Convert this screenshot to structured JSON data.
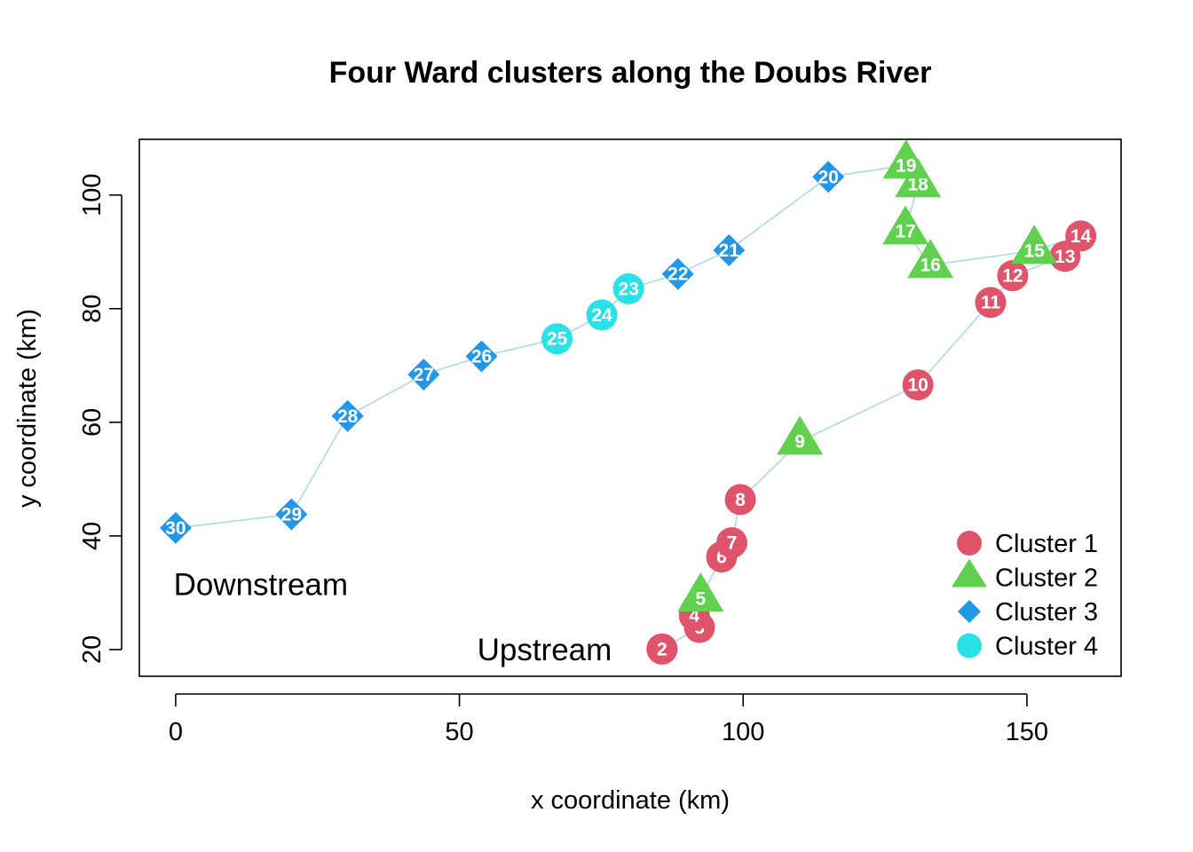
{
  "chart_data": {
    "type": "scatter",
    "title": "Four Ward clusters along the Doubs River",
    "xlabel": "x coordinate (km)",
    "ylabel": "y coordinate (km)",
    "xlim": [
      -6.4,
      166.6
    ],
    "ylim": [
      15.3,
      109.8
    ],
    "xticks": [
      0,
      50,
      100,
      150
    ],
    "yticks": [
      20,
      40,
      60,
      80,
      100
    ],
    "grid": false,
    "legend_position": "bottom-right",
    "line_color": "#ADD8E6",
    "clusters": [
      {
        "id": 1,
        "name": "Cluster 1",
        "color": "#DF536B",
        "marker": "circle"
      },
      {
        "id": 2,
        "name": "Cluster 2",
        "color": "#61D04F",
        "marker": "triangle"
      },
      {
        "id": 3,
        "name": "Cluster 3",
        "color": "#2297E6",
        "marker": "diamond"
      },
      {
        "id": 4,
        "name": "Cluster 4",
        "color": "#28E2E5",
        "marker": "circle"
      }
    ],
    "sites": [
      {
        "label": "1",
        "x": 85.7,
        "y": 20.1,
        "cluster": 1
      },
      {
        "label": "2",
        "x": 85.7,
        "y": 20.1,
        "cluster": 1
      },
      {
        "label": "3",
        "x": 92.3,
        "y": 23.9,
        "cluster": 1
      },
      {
        "label": "4",
        "x": 91.4,
        "y": 26.0,
        "cluster": 1
      },
      {
        "label": "5",
        "x": 92.5,
        "y": 29.0,
        "cluster": 2
      },
      {
        "label": "6",
        "x": 96.2,
        "y": 36.3,
        "cluster": 1
      },
      {
        "label": "7",
        "x": 98.0,
        "y": 38.8,
        "cluster": 1
      },
      {
        "label": "8",
        "x": 99.5,
        "y": 46.4,
        "cluster": 1
      },
      {
        "label": "9",
        "x": 110.0,
        "y": 56.6,
        "cluster": 2
      },
      {
        "label": "10",
        "x": 130.8,
        "y": 66.6,
        "cluster": 1
      },
      {
        "label": "11",
        "x": 143.6,
        "y": 81.1,
        "cluster": 1
      },
      {
        "label": "12",
        "x": 147.5,
        "y": 85.8,
        "cluster": 1
      },
      {
        "label": "13",
        "x": 156.7,
        "y": 89.2,
        "cluster": 1
      },
      {
        "label": "14",
        "x": 159.5,
        "y": 92.8,
        "cluster": 1
      },
      {
        "label": "15",
        "x": 151.3,
        "y": 90.2,
        "cluster": 2
      },
      {
        "label": "16",
        "x": 133.0,
        "y": 87.7,
        "cluster": 2
      },
      {
        "label": "17",
        "x": 128.6,
        "y": 93.6,
        "cluster": 2
      },
      {
        "label": "18",
        "x": 130.8,
        "y": 101.9,
        "cluster": 2
      },
      {
        "label": "19",
        "x": 128.7,
        "y": 105.2,
        "cluster": 2
      },
      {
        "label": "20",
        "x": 115.0,
        "y": 103.2,
        "cluster": 3
      },
      {
        "label": "21",
        "x": 97.5,
        "y": 90.3,
        "cluster": 3
      },
      {
        "label": "22",
        "x": 88.5,
        "y": 86.1,
        "cluster": 3
      },
      {
        "label": "23",
        "x": 79.8,
        "y": 83.5,
        "cluster": 4
      },
      {
        "label": "24",
        "x": 75.1,
        "y": 78.9,
        "cluster": 4
      },
      {
        "label": "25",
        "x": 67.2,
        "y": 74.7,
        "cluster": 4
      },
      {
        "label": "26",
        "x": 53.9,
        "y": 71.6,
        "cluster": 3
      },
      {
        "label": "27",
        "x": 43.7,
        "y": 68.4,
        "cluster": 3
      },
      {
        "label": "28",
        "x": 30.3,
        "y": 61.1,
        "cluster": 3
      },
      {
        "label": "29",
        "x": 20.4,
        "y": 43.8,
        "cluster": 3
      },
      {
        "label": "30",
        "x": 0.0,
        "y": 41.4,
        "cluster": 3
      }
    ],
    "annotations": [
      {
        "text": "Upstream",
        "x": 65,
        "y": 20
      },
      {
        "text": "Downstream",
        "x": 15,
        "y": 31.5
      }
    ]
  }
}
